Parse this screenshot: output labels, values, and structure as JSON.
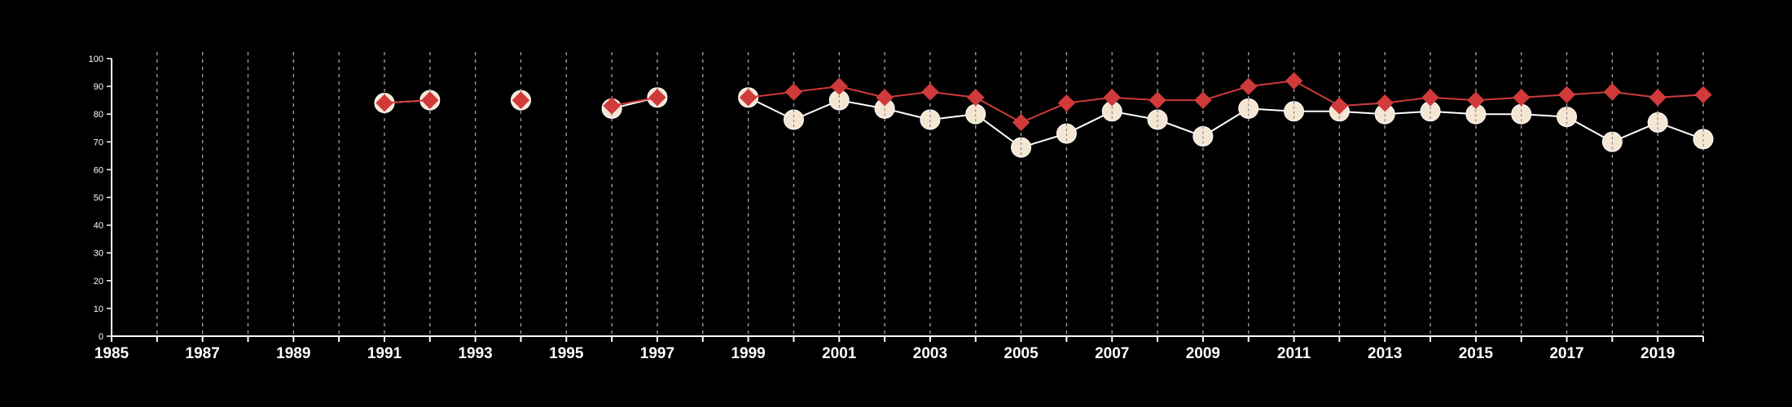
{
  "chart_data": {
    "type": "line",
    "title": "",
    "xlabel": "",
    "ylabel": "",
    "xlim": [
      1985,
      2020
    ],
    "ylim": [
      0,
      100
    ],
    "x_ticks": [
      1985,
      1987,
      1989,
      1991,
      1993,
      1995,
      1997,
      1999,
      2001,
      2003,
      2005,
      2007,
      2009,
      2011,
      2013,
      2015,
      2017,
      2019
    ],
    "y_ticks": [
      0,
      10,
      20,
      30,
      40,
      50,
      60,
      70,
      80,
      90,
      100
    ],
    "vertical_gridlines_years": [
      1986,
      1987,
      1988,
      1989,
      1990,
      1991,
      1992,
      1993,
      1994,
      1995,
      1996,
      1997,
      1998,
      1999,
      2000,
      2001,
      2002,
      2003,
      2004,
      2005,
      2006,
      2007,
      2008,
      2009,
      2010,
      2011,
      2012,
      2013,
      2014,
      2015,
      2016,
      2017,
      2018,
      2019,
      2020
    ],
    "background_color": "#000000",
    "grid": "vertical dashed",
    "legend": "none",
    "series": [
      {
        "color": "#f5e6d3",
        "line_color": "#ffffff",
        "marker": "circle",
        "points": [
          [
            1991,
            84
          ],
          [
            1992,
            85
          ],
          [
            1994,
            85
          ],
          [
            1996,
            82
          ],
          [
            1997,
            86
          ],
          [
            1999,
            86
          ],
          [
            2000,
            78
          ],
          [
            2001,
            85
          ],
          [
            2002,
            82
          ],
          [
            2003,
            78
          ],
          [
            2004,
            80
          ],
          [
            2005,
            68
          ],
          [
            2006,
            73
          ],
          [
            2007,
            81
          ],
          [
            2008,
            78
          ],
          [
            2009,
            72
          ],
          [
            2010,
            82
          ],
          [
            2011,
            81
          ],
          [
            2012,
            81
          ],
          [
            2013,
            80
          ],
          [
            2014,
            81
          ],
          [
            2015,
            80
          ],
          [
            2016,
            80
          ],
          [
            2017,
            79
          ],
          [
            2018,
            70
          ],
          [
            2019,
            77
          ],
          [
            2020,
            71
          ]
        ]
      },
      {
        "color": "#d03a3a",
        "line_color": "#d03a3a",
        "marker": "diamond",
        "points": [
          [
            1991,
            84
          ],
          [
            1992,
            85
          ],
          [
            1994,
            85
          ],
          [
            1996,
            83
          ],
          [
            1997,
            86
          ],
          [
            1999,
            86
          ],
          [
            2000,
            88
          ],
          [
            2001,
            90
          ],
          [
            2002,
            86
          ],
          [
            2003,
            88
          ],
          [
            2004,
            86
          ],
          [
            2005,
            77
          ],
          [
            2006,
            84
          ],
          [
            2007,
            86
          ],
          [
            2008,
            85
          ],
          [
            2009,
            85
          ],
          [
            2010,
            90
          ],
          [
            2011,
            92
          ],
          [
            2012,
            83
          ],
          [
            2013,
            84
          ],
          [
            2014,
            86
          ],
          [
            2015,
            85
          ],
          [
            2016,
            86
          ],
          [
            2017,
            87
          ],
          [
            2018,
            88
          ],
          [
            2019,
            86
          ],
          [
            2020,
            87
          ]
        ]
      }
    ]
  }
}
